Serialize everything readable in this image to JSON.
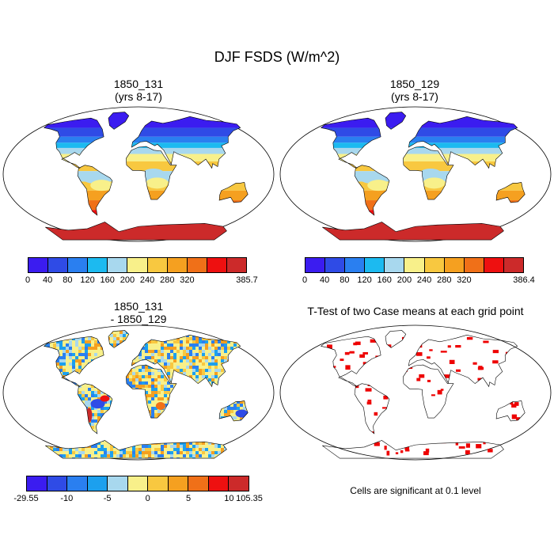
{
  "main_title": "DJF FSDS (W/m^2)",
  "panels": {
    "top_left": {
      "title_line1": "1850_131",
      "title_line2": "(yrs 8-17)"
    },
    "top_right": {
      "title_line1": "1850_129",
      "title_line2": "(yrs 8-17)"
    },
    "bottom_left": {
      "title_line1": "1850_131",
      "title_line2": "- 1850_129"
    },
    "bottom_right": {
      "title": "T-Test of two Case means at each grid point",
      "note": "Cells are significant at 0.1 level"
    }
  },
  "colorbars": {
    "field_colors": [
      "#3b1cf0",
      "#2f4be6",
      "#2a7ff0",
      "#1cbaf0",
      "#a8d8ee",
      "#f8f08a",
      "#f8c840",
      "#f5a020",
      "#f07018",
      "#ee1010",
      "#cc2a2a"
    ],
    "diff_colors": [
      "#3b1cf0",
      "#2f4be6",
      "#2a7ff0",
      "#1ca0ee",
      "#a8d8ee",
      "#f8f08a",
      "#f8c840",
      "#f5a020",
      "#f07018",
      "#ee1010",
      "#cc2a2a"
    ],
    "left_top_labels": [
      "0",
      "40",
      "80",
      "120",
      "160",
      "200",
      "240",
      "280",
      "320",
      "385.7"
    ],
    "right_top_labels": [
      "0",
      "40",
      "80",
      "120",
      "160",
      "200",
      "240",
      "280",
      "320",
      "386.4"
    ],
    "diff_labels": [
      "-29.55",
      "-10",
      "-5",
      "0",
      "5",
      "10",
      "105.35"
    ]
  },
  "significance_color": "#ee0000"
}
